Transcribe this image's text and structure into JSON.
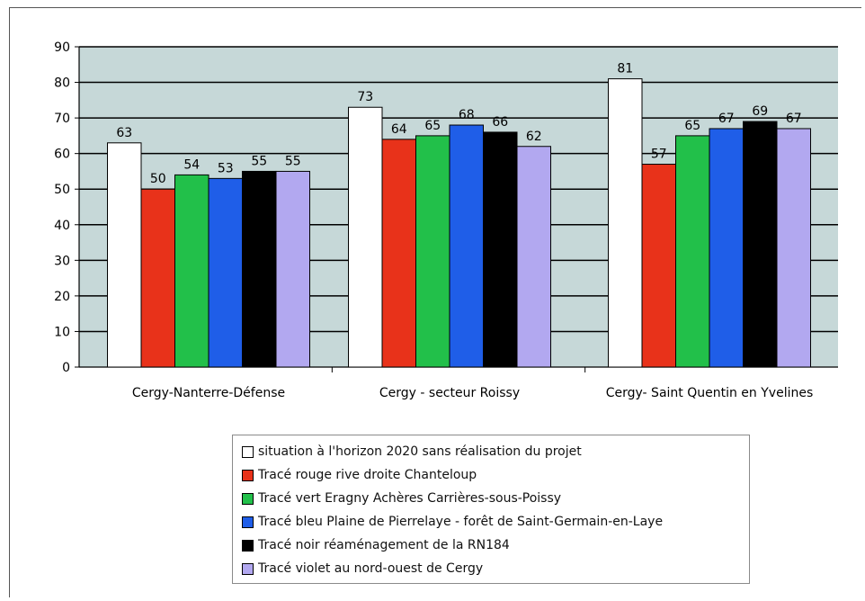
{
  "chart_data": {
    "type": "bar",
    "categories": [
      "Cergy-Nanterre-Défense",
      "Cergy - secteur Roissy",
      "Cergy- Saint Quentin en Yvelines"
    ],
    "series": [
      {
        "name": "situation à l'horizon 2020 sans réalisation du projet",
        "color": "#ffffff",
        "values": [
          63,
          73,
          81
        ]
      },
      {
        "name": "Tracé rouge rive droite Chanteloup",
        "color": "#e8321a",
        "values": [
          50,
          64,
          57
        ]
      },
      {
        "name": "Tracé vert Eragny Achères Carrières-sous-Poissy",
        "color": "#22c04a",
        "values": [
          54,
          65,
          65
        ]
      },
      {
        "name": "Tracé bleu Plaine de Pierrelaye - forêt de Saint-Germain-en-Laye",
        "color": "#1f5ee8",
        "values": [
          53,
          68,
          67
        ]
      },
      {
        "name": "Tracé noir réaménagement de la RN184",
        "color": "#000000",
        "values": [
          55,
          66,
          69
        ]
      },
      {
        "name": "Tracé violet au nord-ouest de Cergy",
        "color": "#b2a8f0",
        "values": [
          55,
          62,
          67
        ]
      }
    ],
    "data_labels": [
      [
        "63",
        "73",
        "81"
      ],
      [
        "50",
        "64",
        "57"
      ],
      [
        "54",
        "65",
        "65"
      ],
      [
        "53",
        "68",
        "67"
      ],
      [
        "55",
        "66",
        "69"
      ],
      [
        "55",
        "62",
        "67"
      ]
    ],
    "ylim": [
      0,
      90
    ],
    "yticks": [
      0,
      10,
      20,
      30,
      40,
      50,
      60,
      70,
      80,
      90
    ],
    "grid": true,
    "legend_position": "bottom-center",
    "plot_background": "#c6d8d8",
    "title": "",
    "xlabel": "",
    "ylabel": ""
  }
}
